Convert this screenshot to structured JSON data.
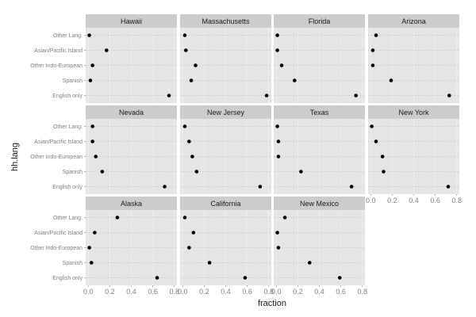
{
  "chart_data": {
    "type": "scatter",
    "xlabel": "fraction",
    "ylabel": "hh.lang",
    "xlim": [
      0,
      0.8
    ],
    "x_ticks": [
      "0.0",
      "0.2",
      "0.4",
      "0.6",
      "0.8"
    ],
    "categories": [
      "English only",
      "Spanish",
      "Other Indo-European",
      "Asian/Pacific Island",
      "Other Lang."
    ],
    "grid": true,
    "panels": [
      {
        "name": "Hawaii",
        "values": [
          0.75,
          0.02,
          0.04,
          0.17,
          0.01
        ]
      },
      {
        "name": "Massachusetts",
        "values": [
          0.78,
          0.08,
          0.12,
          0.03,
          0.02
        ]
      },
      {
        "name": "Florida",
        "values": [
          0.74,
          0.17,
          0.05,
          0.01,
          0.01
        ]
      },
      {
        "name": "Arizona",
        "values": [
          0.73,
          0.19,
          0.02,
          0.02,
          0.05
        ]
      },
      {
        "name": "Nevada",
        "values": [
          0.71,
          0.13,
          0.07,
          0.04,
          0.04
        ]
      },
      {
        "name": "New Jersey",
        "values": [
          0.72,
          0.13,
          0.09,
          0.06,
          0.02
        ]
      },
      {
        "name": "Texas",
        "values": [
          0.7,
          0.23,
          0.02,
          0.02,
          0.01
        ]
      },
      {
        "name": "New York",
        "values": [
          0.72,
          0.12,
          0.11,
          0.05,
          0.01
        ]
      },
      {
        "name": "Alaska",
        "values": [
          0.64,
          0.03,
          0.01,
          0.06,
          0.27
        ]
      },
      {
        "name": "California",
        "values": [
          0.58,
          0.25,
          0.06,
          0.1,
          0.02
        ]
      },
      {
        "name": "New Mexico",
        "values": [
          0.59,
          0.31,
          0.02,
          0.01,
          0.08
        ]
      }
    ]
  }
}
